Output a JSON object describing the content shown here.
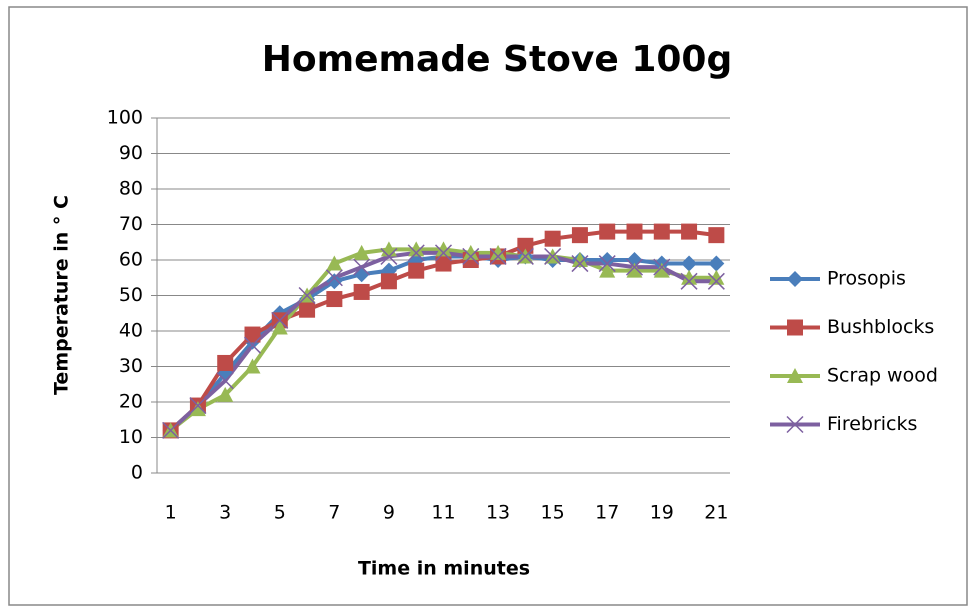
{
  "chart_data": {
    "type": "line",
    "title": "Homemade Stove 100g",
    "x_label": "Time in minutes",
    "y_label": "Temperature in ° C",
    "categories": [
      "1",
      null,
      "3",
      null,
      "5",
      null,
      "7",
      null,
      "9",
      null,
      "11",
      null,
      "13",
      null,
      "15",
      null,
      "17",
      null,
      "19",
      null,
      "21"
    ],
    "ylim": [
      0,
      100
    ],
    "yticks": [
      0,
      10,
      20,
      30,
      40,
      50,
      60,
      70,
      80,
      90,
      100
    ],
    "grid": true,
    "legend": "right",
    "series": [
      {
        "name": "Prosopis",
        "color": "#4a7ebb",
        "marker": "diamond",
        "values": [
          12,
          19,
          28,
          37,
          45,
          49,
          54,
          56,
          57,
          60,
          61,
          61,
          60,
          61,
          60,
          60,
          60,
          60,
          59,
          59,
          59
        ]
      },
      {
        "name": "Bushblocks",
        "color": "#be4b48",
        "marker": "square",
        "values": [
          12,
          19,
          31,
          39,
          43,
          46,
          49,
          51,
          54,
          57,
          59,
          60,
          61,
          64,
          66,
          67,
          68,
          68,
          68,
          68,
          67
        ]
      },
      {
        "name": "Scrap wood",
        "color": "#98b954",
        "marker": "triangle",
        "values": [
          12,
          18,
          22,
          30,
          41,
          50,
          59,
          62,
          63,
          63,
          63,
          62,
          62,
          61,
          61,
          60,
          57,
          57,
          57,
          55,
          55
        ]
      },
      {
        "name": "Firebricks",
        "color": "#7d60a0",
        "marker": "x",
        "values": [
          12,
          19,
          26,
          36,
          43,
          50,
          55,
          58,
          61,
          62,
          62,
          61,
          61,
          61,
          61,
          59,
          59,
          58,
          58,
          54,
          54
        ]
      }
    ]
  }
}
